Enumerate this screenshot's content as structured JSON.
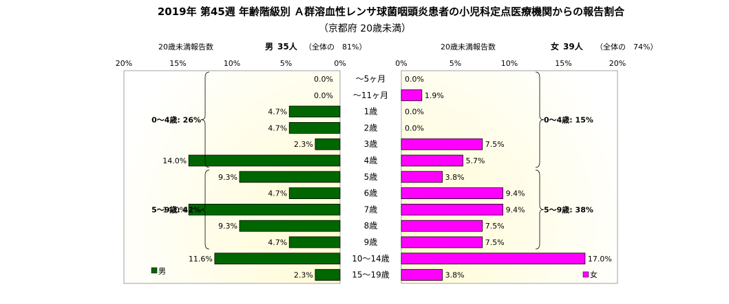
{
  "chart_data": {
    "type": "bar",
    "orientation": "horizontal",
    "layout": "population-pyramid",
    "title": "2019年 第45週 年齢階級別 Ａ群溶血性レンサ球菌咽頭炎患者の小児科定点医療機関からの報告割合",
    "subtitle": "（京都府 20歳未満）",
    "categories": [
      "～5ヶ月",
      "～11ヶ月",
      "1歳",
      "2歳",
      "3歳",
      "4歳",
      "5歳",
      "6歳",
      "7歳",
      "8歳",
      "9歳",
      "10～14歳",
      "15～19歳"
    ],
    "xlim": [
      0,
      20
    ],
    "ticks": [
      "0%",
      "5%",
      "10%",
      "15%",
      "20%"
    ],
    "series": [
      {
        "name": "男",
        "side": "left",
        "color": "#006600",
        "values": [
          0.0,
          0.0,
          4.7,
          4.7,
          2.3,
          14.0,
          9.3,
          4.7,
          14.0,
          9.3,
          4.7,
          11.6,
          2.3
        ],
        "value_labels": [
          "0.0%",
          "0.0%",
          "4.7%",
          "4.7%",
          "2.3%",
          "14.0%",
          "9.3%",
          "4.7%",
          "14.0%",
          "9.3%",
          "4.7%",
          "11.6%",
          "2.3%"
        ],
        "header_label": "20歳未満報告数",
        "header_sex": "男",
        "header_count": "35人",
        "header_ratio": "（全体の　81%）",
        "groups": [
          {
            "label": "0～4歳: 26%",
            "from": 0,
            "to": 5
          },
          {
            "label": "5～9歳: 42%",
            "from": 6,
            "to": 10
          }
        ]
      },
      {
        "name": "女",
        "side": "right",
        "color": "#ff00ff",
        "values": [
          0.0,
          1.9,
          0.0,
          0.0,
          7.5,
          5.7,
          3.8,
          9.4,
          9.4,
          7.5,
          7.5,
          17.0,
          3.8
        ],
        "value_labels": [
          "0.0%",
          "1.9%",
          "0.0%",
          "0.0%",
          "7.5%",
          "5.7%",
          "3.8%",
          "9.4%",
          "9.4%",
          "7.5%",
          "7.5%",
          "17.0%",
          "3.8%"
        ],
        "header_label": "20歳未満報告数",
        "header_sex": "女",
        "header_count": "39人",
        "header_ratio": "（全体の　74%）",
        "groups": [
          {
            "label": "0～4歳: 15%",
            "from": 0,
            "to": 5
          },
          {
            "label": "5～9歳: 38%",
            "from": 6,
            "to": 10
          }
        ]
      }
    ],
    "grid": false,
    "legend": [
      {
        "name": "男",
        "position": "bottom-left"
      },
      {
        "name": "女",
        "position": "bottom-right"
      }
    ],
    "colors": {
      "background_gradient": [
        "#ffffff",
        "#fffdd8",
        "#ffffd0"
      ],
      "border": "#a0a0a0"
    }
  }
}
